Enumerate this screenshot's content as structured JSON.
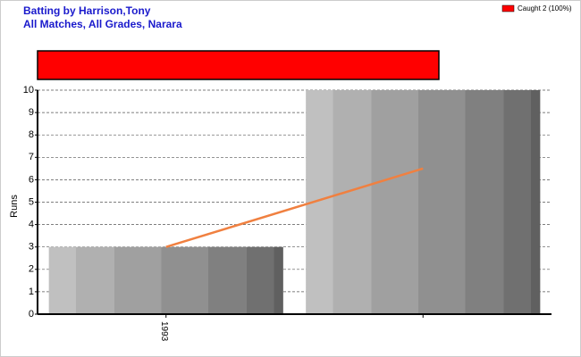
{
  "chart_data": {
    "type": "bar",
    "title": "Batting by Harrison,Tony",
    "subtitle": "All Matches, All Grades, Narara",
    "y_label": "Runs",
    "categories": [
      "1993",
      null
    ],
    "values": [
      3,
      10
    ],
    "trend": {
      "values": [
        3,
        6.5
      ],
      "color": "#f08040"
    },
    "dismissals": {
      "name": "Caught 2 (100%)",
      "values": [
        2
      ],
      "color": "#ff0000"
    },
    "ylim": [
      0,
      10
    ],
    "yticks": [
      0,
      1,
      2,
      3,
      4,
      5,
      6,
      7,
      8,
      9,
      10
    ],
    "grid": true
  }
}
